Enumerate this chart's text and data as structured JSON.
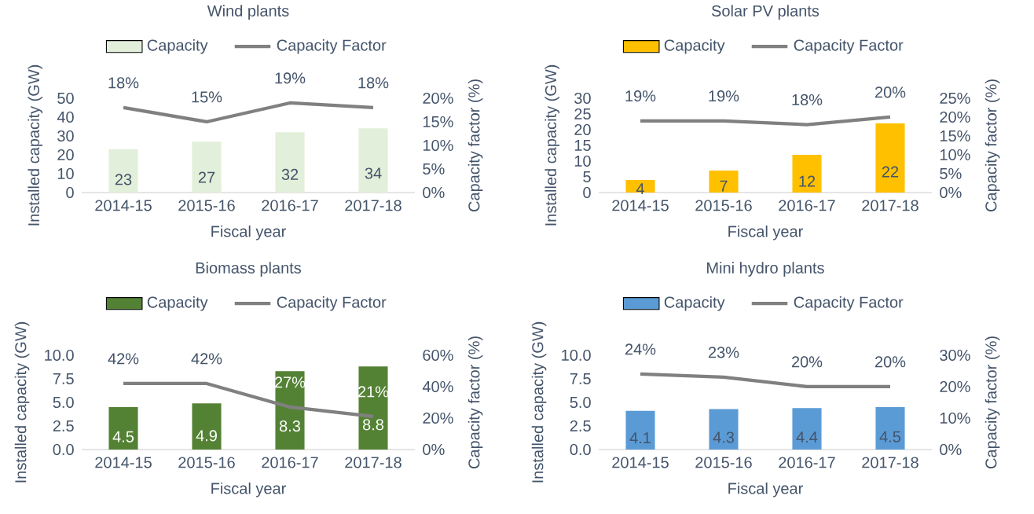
{
  "chart_data": [
    {
      "type": "bar",
      "title": "Wind plants",
      "xlabel": "Fiscal year",
      "ylabel": "Installed capacity (GW)",
      "y2label": "Capacity factor (%)",
      "categories": [
        "2014-15",
        "2015-16",
        "2016-17",
        "2017-18"
      ],
      "legend": "top",
      "series": [
        {
          "name": "Capacity",
          "color": "#e2efda",
          "values": [
            23,
            27,
            32,
            34
          ],
          "value_labels": [
            "23",
            "27",
            "32",
            "34"
          ]
        },
        {
          "name": "Capacity Factor",
          "type": "line",
          "axis": "y2",
          "color": "#808080",
          "values": [
            18,
            15,
            19,
            18
          ],
          "value_labels": [
            "18%",
            "15%",
            "19%",
            "18%"
          ]
        }
      ],
      "ylim": [
        0,
        50
      ],
      "yticks": [
        0,
        10,
        20,
        30,
        40,
        50
      ],
      "y2lim": [
        0,
        20
      ],
      "y2ticks": [
        {
          "value": 0,
          "label": "0%"
        },
        {
          "value": 5,
          "label": "5%"
        },
        {
          "value": 10,
          "label": "10%"
        },
        {
          "value": 15,
          "label": "15%"
        },
        {
          "value": 20,
          "label": "20%"
        }
      ]
    },
    {
      "type": "bar",
      "title": "Solar PV plants",
      "xlabel": "Fiscal year",
      "ylabel": "Installed capacity (GW)",
      "y2label": "Capacity factor (%)",
      "categories": [
        "2014-15",
        "2015-16",
        "2016-17",
        "2017-18"
      ],
      "legend": "top",
      "series": [
        {
          "name": "Capacity",
          "color": "#ffc000",
          "values": [
            4,
            7,
            12,
            22
          ],
          "value_labels": [
            "4",
            "7",
            "12",
            "22"
          ]
        },
        {
          "name": "Capacity Factor",
          "type": "line",
          "axis": "y2",
          "color": "#808080",
          "values": [
            19,
            19,
            18,
            20
          ],
          "value_labels": [
            "19%",
            "19%",
            "18%",
            "20%"
          ]
        }
      ],
      "ylim": [
        0,
        30
      ],
      "yticks": [
        0,
        5,
        10,
        15,
        20,
        25,
        30
      ],
      "y2lim": [
        0,
        25
      ],
      "y2ticks": [
        {
          "value": 0,
          "label": "0%"
        },
        {
          "value": 5,
          "label": "5%"
        },
        {
          "value": 10,
          "label": "10%"
        },
        {
          "value": 15,
          "label": "15%"
        },
        {
          "value": 20,
          "label": "20%"
        },
        {
          "value": 25,
          "label": "25%"
        }
      ]
    },
    {
      "type": "bar",
      "title": "Biomass plants",
      "xlabel": "Fiscal year",
      "ylabel": "Installed capacity (GW)",
      "y2label": "Capacity factor (%)",
      "categories": [
        "2014-15",
        "2015-16",
        "2016-17",
        "2017-18"
      ],
      "legend": "top",
      "series": [
        {
          "name": "Capacity",
          "color": "#548235",
          "values": [
            4.5,
            4.9,
            8.3,
            8.8
          ],
          "value_labels": [
            "4.5",
            "4.9",
            "8.3",
            "8.8"
          ]
        },
        {
          "name": "Capacity Factor",
          "type": "line",
          "axis": "y2",
          "color": "#808080",
          "values": [
            42,
            42,
            27,
            21
          ],
          "value_labels": [
            "42%",
            "42%",
            "27%",
            "21%"
          ]
        }
      ],
      "ylim": [
        0,
        10
      ],
      "yticks": [
        {
          "value": 0,
          "label": "0.0"
        },
        2.5,
        {
          "value": 5,
          "label": "5.0"
        },
        7.5,
        {
          "value": 10,
          "label": "10.0"
        }
      ],
      "y2lim": [
        0,
        60
      ],
      "y2ticks": [
        {
          "value": 0,
          "label": "0%"
        },
        {
          "value": 20,
          "label": "20%"
        },
        {
          "value": 40,
          "label": "40%"
        },
        {
          "value": 60,
          "label": "60%"
        }
      ]
    },
    {
      "type": "bar",
      "title": "Mini hydro plants",
      "xlabel": "Fiscal year",
      "ylabel": "Installed capacity (GW)",
      "y2label": "Capacity factor (%)",
      "categories": [
        "2014-15",
        "2015-16",
        "2016-17",
        "2017-18"
      ],
      "legend": "top",
      "series": [
        {
          "name": "Capacity",
          "color": "#5b9bd5",
          "values": [
            4.1,
            4.3,
            4.4,
            4.5
          ],
          "value_labels": [
            "4.1",
            "4.3",
            "4.4",
            "4.5"
          ]
        },
        {
          "name": "Capacity Factor",
          "type": "line",
          "axis": "y2",
          "color": "#808080",
          "values": [
            24,
            23,
            20,
            20
          ],
          "value_labels": [
            "24%",
            "23%",
            "20%",
            "20%"
          ]
        }
      ],
      "ylim": [
        0,
        10
      ],
      "yticks": [
        {
          "value": 0,
          "label": "0.0"
        },
        2.5,
        {
          "value": 5,
          "label": "5.0"
        },
        7.5,
        {
          "value": 10,
          "label": "10.0"
        }
      ],
      "y2lim": [
        0,
        30
      ],
      "y2ticks": [
        {
          "value": 0,
          "label": "0%"
        },
        {
          "value": 10,
          "label": "10%"
        },
        {
          "value": 20,
          "label": "20%"
        },
        {
          "value": 30,
          "label": "30%"
        }
      ]
    }
  ]
}
